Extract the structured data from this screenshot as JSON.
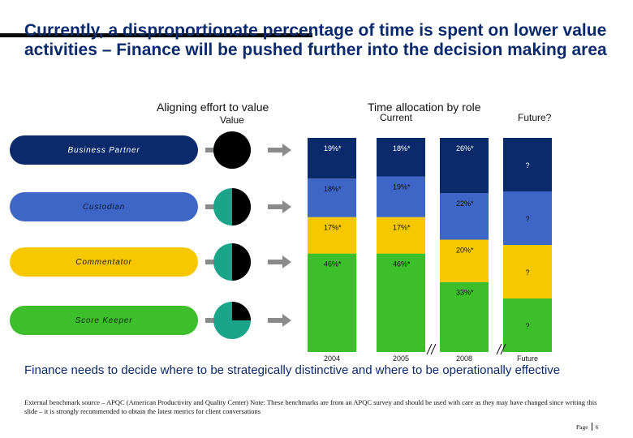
{
  "title": "Currently, a disproportionate percentage of time is spent on lower value activities – Finance will be pushed further into the decision making area",
  "left_panel": {
    "heading": "Aligning effort to value",
    "value_label": "Value",
    "roles": [
      {
        "label": "Business Partner",
        "color": "#0a2a6b",
        "text_color": "#ffffff",
        "value_fraction": 1.0
      },
      {
        "label": "Custodian",
        "color": "#3d66c7",
        "text_color": "#0a1a40",
        "value_fraction": 0.5
      },
      {
        "label": "Commentator",
        "color": "#f7c800",
        "text_color": "#1a1a00",
        "value_fraction": 0.5
      },
      {
        "label": "Score Keeper",
        "color": "#3dbf2c",
        "text_color": "#0a2a0a",
        "value_fraction": 0.25
      }
    ],
    "pie_colors": {
      "value": "#000000",
      "rest": "#1aa58a"
    }
  },
  "chart_data": {
    "type": "bar",
    "stacked": true,
    "title": "Time allocation by role",
    "current_label": "Current",
    "future_label": "Future?",
    "categories": [
      "2004",
      "2005",
      "2008",
      "Future"
    ],
    "series": [
      {
        "name": "Score Keeper",
        "color": "#3dbf2c",
        "values": [
          46,
          46,
          33,
          null
        ],
        "labels": [
          "46%*",
          "46%*",
          "33%*",
          "?"
        ]
      },
      {
        "name": "Commentator",
        "color": "#f7c800",
        "values": [
          17,
          17,
          20,
          null
        ],
        "labels": [
          "17%*",
          "17%*",
          "20%*",
          "?"
        ]
      },
      {
        "name": "Custodian",
        "color": "#3d66c7",
        "values": [
          18,
          19,
          22,
          null
        ],
        "labels": [
          "18%*",
          "19%*",
          "22%*",
          "?"
        ]
      },
      {
        "name": "Business Partner",
        "color": "#0a2a6b",
        "values": [
          19,
          18,
          26,
          null
        ],
        "labels": [
          "19%*",
          "18%*",
          "26%*",
          "?"
        ]
      }
    ],
    "future_equal_share": 25,
    "axis_break_marks": 2
  },
  "bottom_statement": "Finance needs to decide where to be strategically distinctive and where to be operationally effective",
  "footnote": "External benchmark source – APQC (American Productivity and Quality Center) Note: These benchmarks are from an APQC survey and should be used with care as they may have changed since writing this slide – it is strongly recommended to obtain the latest metrics for client conversations",
  "page": {
    "label": "Page",
    "number": "6"
  }
}
